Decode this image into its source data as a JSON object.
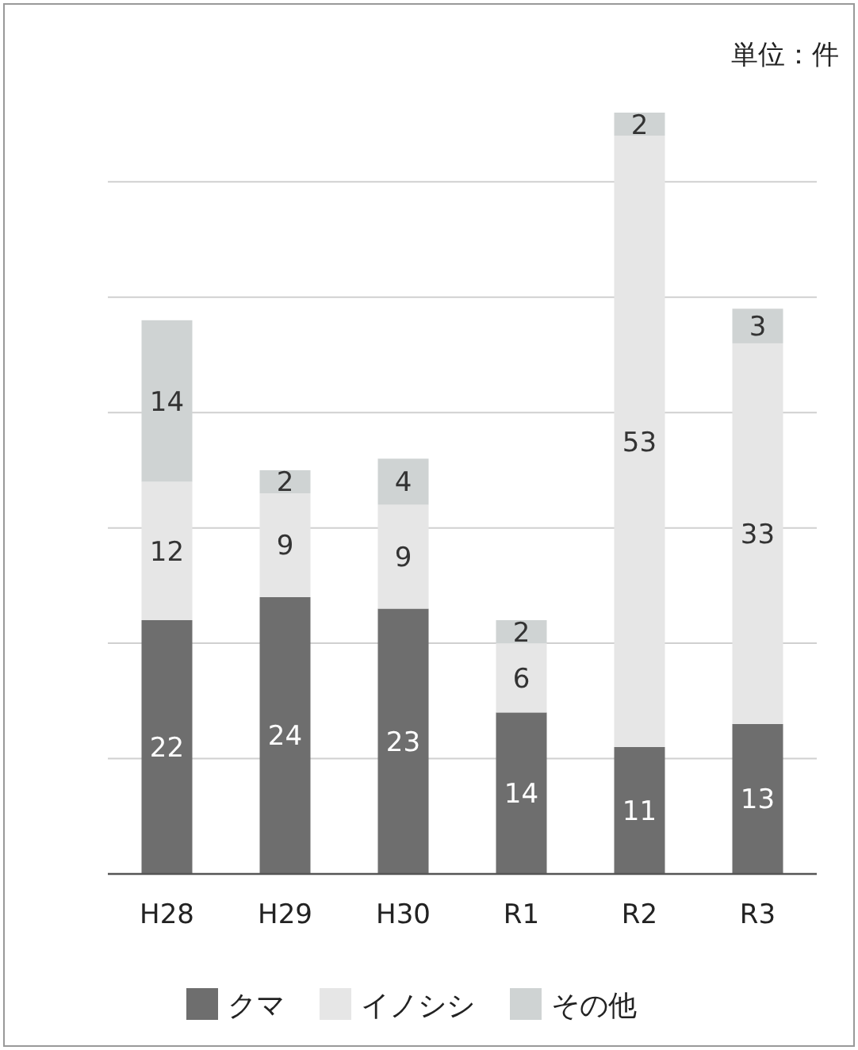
{
  "chart_data": {
    "type": "bar",
    "stacked": true,
    "categories": [
      "H28",
      "H29",
      "H30",
      "R1",
      "R2",
      "R3"
    ],
    "series": [
      {
        "name": "クマ",
        "color": "#6e6e6e",
        "values": [
          22,
          24,
          23,
          14,
          11,
          13
        ]
      },
      {
        "name": "イノシシ",
        "color": "#e6e6e6",
        "values": [
          12,
          9,
          9,
          6,
          53,
          33
        ]
      },
      {
        "name": "その他",
        "color": "#cfd3d3",
        "values": [
          14,
          2,
          4,
          2,
          2,
          3
        ]
      }
    ],
    "ylim": [
      0,
      66
    ],
    "yticks": [
      {
        "value": 0,
        "label": null
      },
      {
        "value": 10,
        "label": null
      },
      {
        "value": 20,
        "label": null
      },
      {
        "value": 30,
        "label": null
      },
      {
        "value": 40,
        "label": null
      },
      {
        "value": 50,
        "label": null
      },
      {
        "value": 60,
        "label": null
      }
    ],
    "grid": "y",
    "data_labels": true,
    "legend": "bottom",
    "tick_labels": "x",
    "annotations": [
      "単位：件"
    ]
  }
}
